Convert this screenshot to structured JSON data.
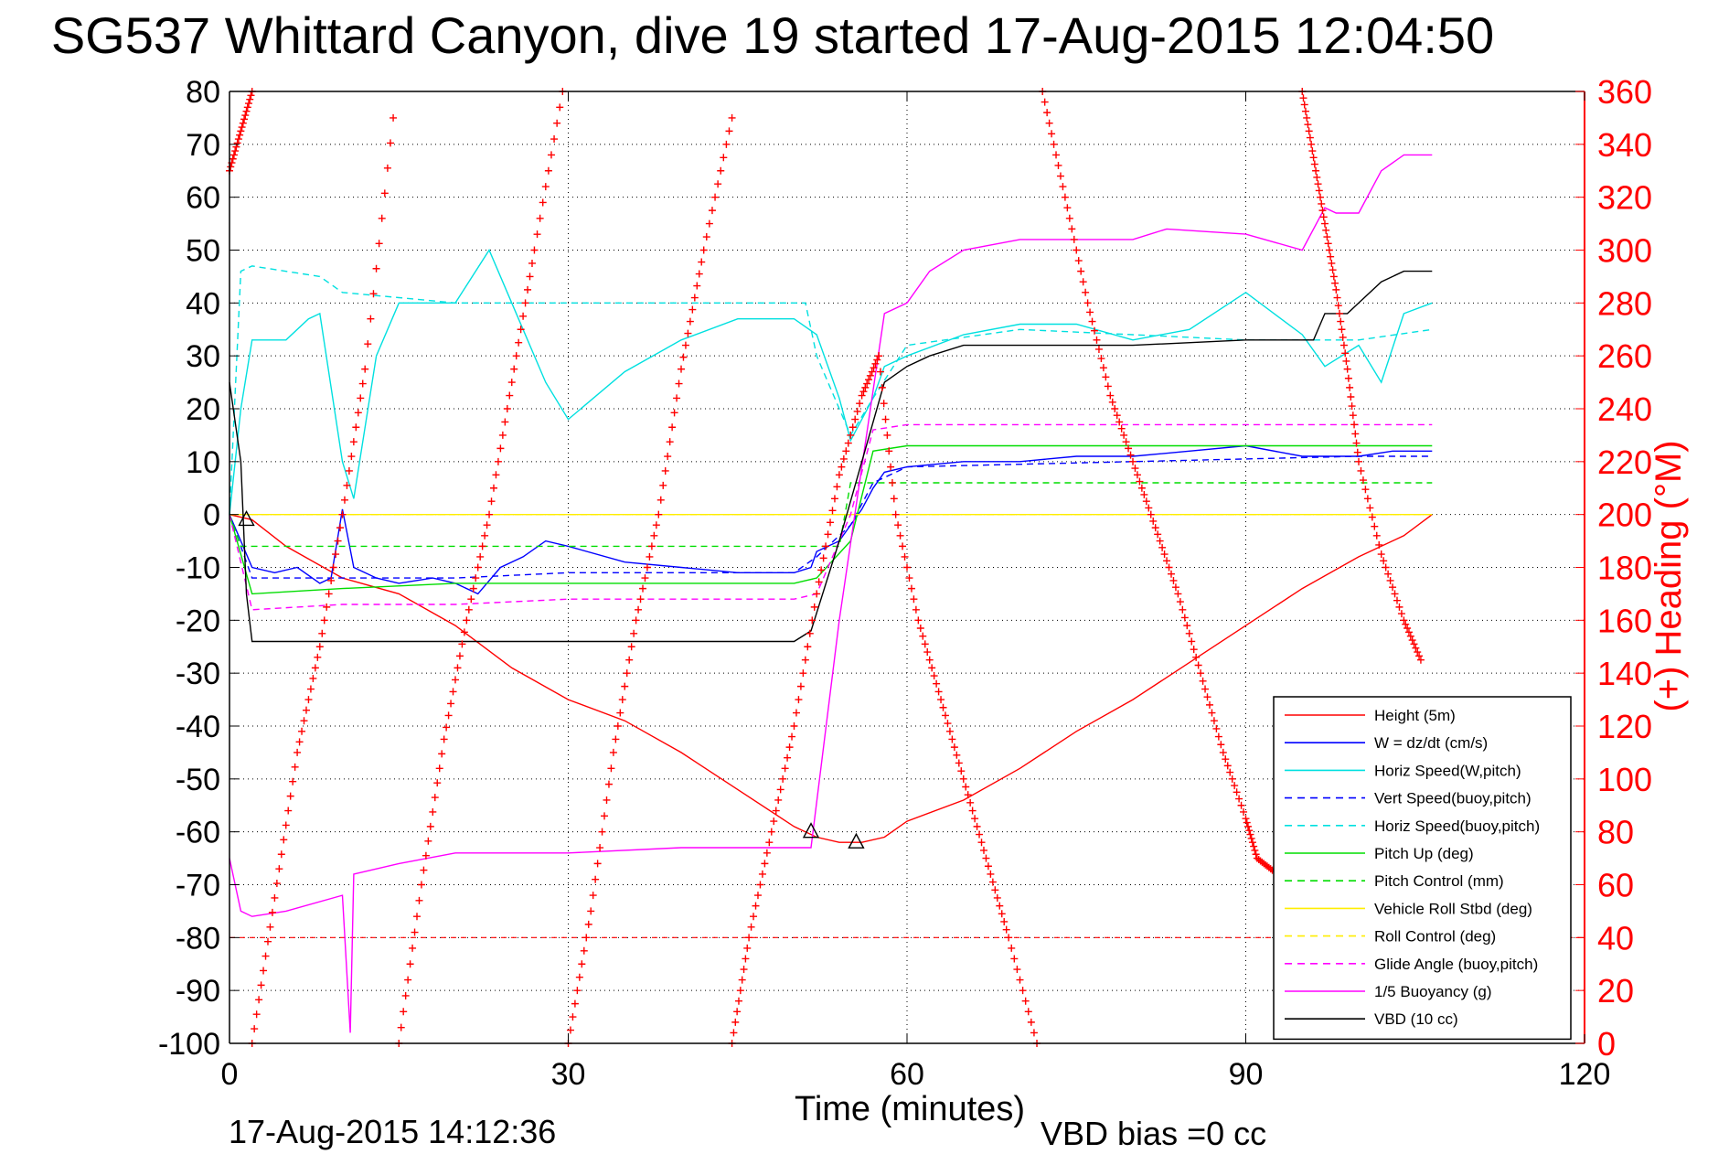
{
  "chart_data": {
    "type": "line",
    "title": "SG537 Whittard Canyon, dive 19 started 17-Aug-2015 12:04:50",
    "xlabel": "Time (minutes)",
    "ylabel_right": "(+) Heading (°M)",
    "footer_left": "17-Aug-2015 14:12:36",
    "footer_right": "VBD bias =0 cc",
    "xlim": [
      0,
      120
    ],
    "ylim": [
      -100,
      80
    ],
    "ylim_right": [
      0,
      360
    ],
    "x_ticks": [
      0,
      30,
      60,
      90,
      120
    ],
    "y_ticks": [
      80,
      70,
      60,
      50,
      40,
      30,
      20,
      10,
      0,
      -10,
      -20,
      -30,
      -40,
      -50,
      -60,
      -70,
      -80,
      -90,
      -100
    ],
    "y_ticks_right": [
      360,
      340,
      320,
      300,
      280,
      260,
      240,
      220,
      200,
      180,
      160,
      140,
      120,
      100,
      80,
      60,
      40,
      20,
      0
    ],
    "grid": true,
    "legend_position": "bottom-right",
    "series": [
      {
        "name": "Height (5m)",
        "color": "#ff0000",
        "style": "solid",
        "x": [
          0,
          2,
          5,
          10,
          15,
          20,
          25,
          30,
          35,
          40,
          45,
          50,
          52,
          54,
          56,
          58,
          60,
          65,
          70,
          75,
          80,
          85,
          90,
          95,
          100,
          104,
          106.5
        ],
        "y": [
          0,
          -1,
          -6,
          -12,
          -15,
          -21,
          -29,
          -35,
          -39,
          -45,
          -52,
          -59,
          -61,
          -62,
          -62,
          -61,
          -58,
          -54,
          -48,
          -41,
          -35,
          -28,
          -21,
          -14,
          -8,
          -4,
          0
        ]
      },
      {
        "name": "W = dz/dt (cm/s)",
        "color": "#0000ff",
        "style": "solid",
        "x": [
          0,
          1,
          2,
          4,
          6,
          8,
          9,
          10,
          11,
          13,
          15,
          18,
          20,
          22,
          24,
          26,
          28,
          30,
          35,
          40,
          45,
          50,
          51.5,
          52,
          54,
          56,
          57,
          58,
          60,
          65,
          70,
          75,
          80,
          85,
          90,
          95,
          100,
          103,
          106.5
        ],
        "y": [
          0,
          -5,
          -10,
          -11,
          -10,
          -13,
          -12,
          1,
          -10,
          -12,
          -13,
          -12,
          -13,
          -15,
          -10,
          -8,
          -5,
          -6,
          -9,
          -10,
          -11,
          -11,
          -10,
          -7,
          -5,
          1,
          5,
          8,
          9,
          10,
          10,
          11,
          11,
          12,
          13,
          11,
          11,
          12,
          12
        ]
      },
      {
        "name": "Horiz Speed(W,pitch)",
        "color": "#00e0e0",
        "style": "solid",
        "x": [
          0,
          1,
          2,
          5,
          7,
          8,
          10,
          11,
          13,
          15,
          18,
          20,
          23,
          26,
          28,
          30,
          35,
          40,
          45,
          50,
          52,
          54,
          55,
          57,
          58,
          60,
          65,
          70,
          75,
          80,
          85,
          90,
          95,
          97,
          100,
          102,
          104,
          106.5
        ],
        "y": [
          0,
          20,
          33,
          33,
          37,
          38,
          10,
          3,
          30,
          40,
          40,
          40,
          50,
          35,
          25,
          18,
          27,
          33,
          37,
          37,
          34,
          22,
          14,
          22,
          28,
          30,
          34,
          36,
          36,
          33,
          35,
          42,
          34,
          28,
          32,
          25,
          38,
          40
        ]
      },
      {
        "name": "Vert Speed(buoy,pitch)",
        "color": "#0000ff",
        "style": "dashed",
        "x": [
          0,
          2,
          10,
          20,
          30,
          40,
          50,
          52,
          55,
          57,
          60,
          80,
          100,
          106.5
        ],
        "y": [
          0,
          -12,
          -12,
          -12,
          -11,
          -11,
          -11,
          -8,
          -2,
          6,
          9,
          10,
          11,
          11
        ]
      },
      {
        "name": "Horiz Speed(buoy,pitch)",
        "color": "#00e0e0",
        "style": "dashed",
        "x": [
          0,
          1,
          2,
          8,
          10,
          15,
          20,
          30,
          40,
          51,
          52,
          55,
          57,
          60,
          70,
          80,
          90,
          95,
          100,
          106.5
        ],
        "y": [
          0,
          46,
          47,
          45,
          42,
          41,
          40,
          40,
          40,
          40,
          30,
          15,
          22,
          32,
          35,
          34,
          33,
          33,
          33,
          35
        ]
      },
      {
        "name": "Pitch Up (deg)",
        "color": "#00dd00",
        "style": "solid",
        "x": [
          0,
          2,
          10,
          20,
          30,
          40,
          50,
          52,
          55,
          57,
          60,
          70,
          80,
          90,
          100,
          106.5
        ],
        "y": [
          0,
          -15,
          -14,
          -13,
          -13,
          -13,
          -13,
          -12,
          -5,
          12,
          13,
          13,
          13,
          13,
          13,
          13
        ]
      },
      {
        "name": "Pitch Control (mm)",
        "color": "#00dd00",
        "style": "dashed",
        "x": [
          0,
          1,
          2,
          51,
          52,
          54,
          55,
          58,
          59,
          106.5
        ],
        "y": [
          0,
          -6,
          -6,
          -6,
          -6,
          -6,
          6,
          6,
          6,
          6
        ]
      },
      {
        "name": "Vehicle Roll Stbd (deg)",
        "color": "#ffee00",
        "style": "solid",
        "x": [
          0,
          106.5
        ],
        "y": [
          0,
          0
        ]
      },
      {
        "name": "Roll Control (deg)",
        "color": "#ffee00",
        "style": "dashed",
        "x": [
          0,
          106.5
        ],
        "y": [
          0,
          0
        ]
      },
      {
        "name": "Glide Angle (buoy,pitch)",
        "color": "#ff00ff",
        "style": "dashed",
        "x": [
          0,
          2,
          10,
          20,
          30,
          40,
          50,
          52,
          55,
          57,
          60,
          80,
          100,
          106.5
        ],
        "y": [
          0,
          -18,
          -17,
          -17,
          -16,
          -16,
          -16,
          -15,
          0,
          16,
          17,
          17,
          17,
          17
        ]
      },
      {
        "name": "1/5 Buoyancy (g)",
        "color": "#ff00ff",
        "style": "solid",
        "x": [
          0,
          1,
          2,
          5,
          10,
          10.7,
          11,
          15,
          20,
          30,
          40,
          50,
          51.5,
          54,
          58,
          60,
          62,
          65,
          70,
          80,
          83,
          90,
          95,
          97,
          98,
          100,
          102,
          104,
          106.5
        ],
        "y": [
          -65,
          -75,
          -76,
          -75,
          -72,
          -98,
          -68,
          -66,
          -64,
          -64,
          -63,
          -63,
          -63,
          -20,
          38,
          40,
          46,
          50,
          52,
          52,
          54,
          53,
          50,
          58,
          57,
          57,
          65,
          68,
          68
        ]
      },
      {
        "name": "VBD (10 cc)",
        "color": "#000000",
        "style": "solid",
        "x": [
          0,
          1,
          1.5,
          2,
          50,
          51.5,
          54,
          58,
          60,
          62,
          65,
          70,
          80,
          90,
          96,
          97,
          99,
          100,
          102,
          104,
          106.5
        ],
        "y": [
          25,
          10,
          -15,
          -24,
          -24,
          -22,
          -5,
          25,
          28,
          30,
          32,
          32,
          32,
          33,
          33,
          38,
          38,
          40,
          44,
          46,
          46
        ]
      }
    ],
    "heading_series": {
      "name": "(+) Heading (°M)",
      "color": "#ff0000",
      "marker": "+",
      "axis": "right",
      "segments": [
        {
          "x": [
            0,
            1,
            2
          ],
          "y": [
            330,
            345,
            360
          ]
        },
        {
          "x": [
            2,
            4,
            6,
            8,
            10,
            12,
            14.5
          ],
          "y": [
            0,
            55,
            110,
            150,
            200,
            255,
            350
          ]
        },
        {
          "x": [
            15,
            17,
            19,
            21,
            23,
            25,
            27,
            29.5
          ],
          "y": [
            0,
            60,
            115,
            160,
            200,
            250,
            300,
            360
          ]
        },
        {
          "x": [
            30,
            32,
            34,
            36,
            38,
            40,
            42,
            44.5
          ],
          "y": [
            0,
            50,
            110,
            160,
            200,
            255,
            300,
            350
          ]
        },
        {
          "x": [
            44.5,
            46,
            48,
            50,
            52,
            54,
            56,
            57.5
          ],
          "y": [
            0,
            40,
            80,
            120,
            170,
            215,
            245,
            260
          ]
        },
        {
          "x": [
            57.5,
            59,
            61,
            63,
            65,
            67,
            69,
            71.5
          ],
          "y": [
            260,
            200,
            160,
            130,
            100,
            70,
            40,
            0
          ]
        },
        {
          "x": [
            72,
            74,
            76,
            78,
            80,
            82,
            84,
            86,
            88,
            90,
            91,
            92.5
          ],
          "y": [
            360,
            320,
            280,
            245,
            220,
            195,
            170,
            140,
            110,
            85,
            70,
            65
          ]
        },
        {
          "x": [
            95,
            96,
            97,
            98,
            99,
            100,
            102,
            104,
            105.5
          ],
          "y": [
            360,
            335,
            310,
            285,
            255,
            220,
            185,
            160,
            145
          ]
        }
      ]
    },
    "reference_line": {
      "y": -80,
      "color": "#ff0000",
      "style": "dashed"
    },
    "markers": [
      {
        "x": 1.5,
        "y": -1,
        "shape": "triangle"
      },
      {
        "x": 51.5,
        "y": -60,
        "shape": "triangle"
      },
      {
        "x": 55.5,
        "y": -62,
        "shape": "triangle"
      }
    ]
  }
}
